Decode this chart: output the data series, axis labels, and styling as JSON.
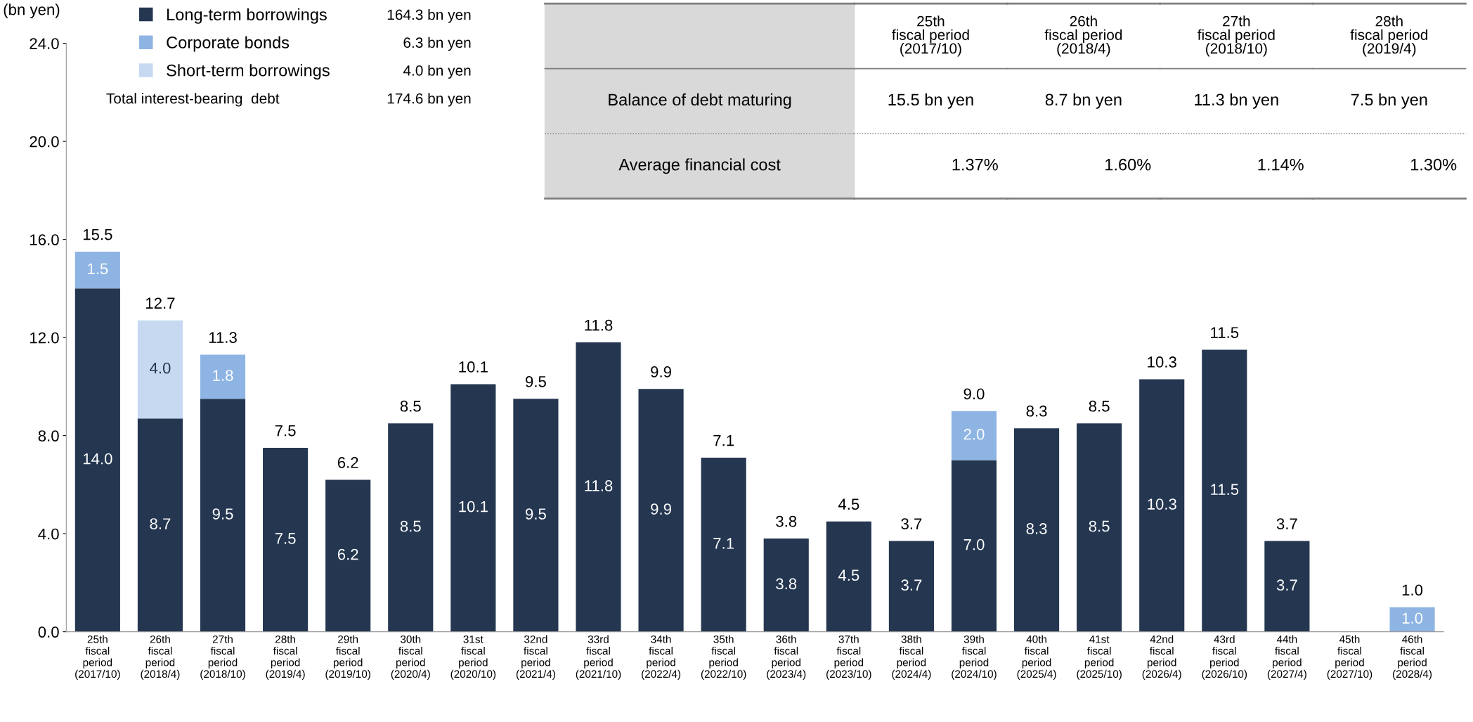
{
  "chart_data": {
    "type": "bar",
    "stacked": true,
    "ylabel": "(bn yen)",
    "ylim": [
      0,
      24
    ],
    "yticks": [
      {
        "value": 0,
        "label": "0.0"
      },
      {
        "value": 4,
        "label": "4.0"
      },
      {
        "value": 8,
        "label": "8.0"
      },
      {
        "value": 12,
        "label": "12.0"
      },
      {
        "value": 16,
        "label": "16.0"
      },
      {
        "value": 20,
        "label": "20.0"
      },
      {
        "value": 24,
        "label": "24.0"
      }
    ],
    "grid": false,
    "legend": "top left",
    "categories": [
      "25th\nfiscal\nperiod\n(2017/10)",
      "26th\nfiscal\nperiod\n(2018/4)",
      "27th\nfiscal\nperiod\n(2018/10)",
      "28th\nfiscal\nperiod\n(2019/4)",
      "29th\nfiscal\nperiod\n(2019/10)",
      "30th\nfiscal\nperiod\n(2020/4)",
      "31st\nfiscal\nperiod\n(2020/10)",
      "32nd\nfiscal\nperiod\n(2021/4)",
      "33rd\nfiscal\nperiod\n(2021/10)",
      "34th\nfiscal\nperiod\n(2022/4)",
      "35th\nfiscal\nperiod\n(2022/10)",
      "36th\nfiscal\nperiod\n(2023/4)",
      "37th\nfiscal\nperiod\n(2023/10)",
      "38th\nfiscal\nperiod\n(2024/4)",
      "39th\nfiscal\nperiod\n(2024/10)",
      "40th\nfiscal\nperiod\n(2025/4)",
      "41st\nfiscal\nperiod\n(2025/10)",
      "42nd\nfiscal\nperiod\n(2026/4)",
      "43rd\nfiscal\nperiod\n(2026/10)",
      "44th\nfiscal\nperiod\n(2027/4)",
      "45th\nfiscal\nperiod\n(2027/10)",
      "46th\nfiscal\nperiod\n(2028/4)"
    ],
    "series": [
      {
        "name": "Long-term borrowings",
        "color": "#243650",
        "values": [
          14.0,
          8.7,
          9.5,
          7.5,
          6.2,
          8.5,
          10.1,
          9.5,
          11.8,
          9.9,
          7.1,
          3.8,
          4.5,
          3.7,
          7.0,
          8.3,
          8.5,
          10.3,
          11.5,
          3.7,
          null,
          null
        ],
        "value_labels": [
          "14.0",
          "8.7",
          "9.5",
          "7.5",
          "6.2",
          "8.5",
          "10.1",
          "9.5",
          "11.8",
          "9.9",
          "7.1",
          "3.8",
          "4.5",
          "3.7",
          "7.0",
          "8.3",
          "8.5",
          "10.3",
          "11.5",
          "3.7",
          null,
          null
        ]
      },
      {
        "name": "Corporate bonds",
        "color": "#8eb4e3",
        "values": [
          1.5,
          null,
          1.8,
          null,
          null,
          null,
          null,
          null,
          null,
          null,
          null,
          null,
          null,
          null,
          2.0,
          null,
          null,
          null,
          null,
          null,
          null,
          1.0
        ],
        "value_labels": [
          "1.5",
          null,
          "1.8",
          null,
          null,
          null,
          null,
          null,
          null,
          null,
          null,
          null,
          null,
          null,
          "2.0",
          null,
          null,
          null,
          null,
          null,
          null,
          "1.0"
        ]
      },
      {
        "name": "Short-term borrowings",
        "color": "#c6d9f1",
        "values": [
          null,
          4.0,
          null,
          null,
          null,
          null,
          null,
          null,
          null,
          null,
          null,
          null,
          null,
          null,
          null,
          null,
          null,
          null,
          null,
          null,
          null,
          null
        ],
        "value_labels": [
          null,
          "4.0",
          null,
          null,
          null,
          null,
          null,
          null,
          null,
          null,
          null,
          null,
          null,
          null,
          null,
          null,
          null,
          null,
          null,
          null,
          null,
          null
        ]
      }
    ],
    "totals": [
      "15.5",
      "12.7",
      "11.3",
      "7.5",
      "6.2",
      "8.5",
      "10.1",
      "9.5",
      "11.8",
      "9.9",
      "7.1",
      "3.8",
      "4.5",
      "3.7",
      "9.0",
      "8.3",
      "8.5",
      "10.3",
      "11.5",
      "3.7",
      null,
      "1.0"
    ],
    "annotations": [
      "164.3 bn yen",
      "6.3 bn yen",
      "4.0 bn yen",
      "Total interest-bearing  debt",
      "174.6 bn yen",
      "25th\nfiscal period\n(2017/10)",
      "26th\nfiscal period\n(2018/4)",
      "27th\nfiscal period\n(2018/10)",
      "28th\nfiscal period\n(2019/4)",
      "Balance of debt maturing",
      "15.5 bn yen",
      "8.7 bn yen",
      "11.3 bn yen",
      "7.5 bn yen",
      "Average financial cost",
      "1.37%",
      "1.60%",
      "1.14%",
      "1.30%"
    ]
  }
}
